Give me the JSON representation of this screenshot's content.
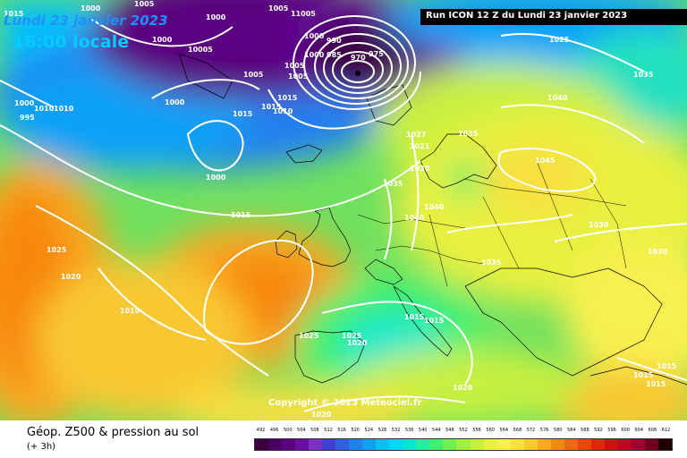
{
  "header": {
    "date": "Lundi 23 janvier 2023",
    "time": "16:00 locale",
    "run": "Run ICON 12 Z du Lundi 23 janvier 2023"
  },
  "copyright": "Copyright © 2023 Meteociel.fr",
  "footer": {
    "title": "Géop. Z500 & pression au sol",
    "subtitle": "(+ 3h)"
  },
  "scale": {
    "labels": [
      "492",
      "496",
      "500",
      "504",
      "508",
      "512",
      "516",
      "520",
      "524",
      "528",
      "532",
      "536",
      "540",
      "544",
      "548",
      "552",
      "556",
      "560",
      "564",
      "568",
      "572",
      "576",
      "580",
      "584",
      "588",
      "592",
      "596",
      "600",
      "604",
      "608",
      "612"
    ],
    "colors": [
      "#3a0040",
      "#4a0060",
      "#5a0080",
      "#6a10a0",
      "#7a30c0",
      "#4040d0",
      "#3060e0",
      "#2080f0",
      "#10a0f8",
      "#00c0ff",
      "#00d8f8",
      "#00e8d0",
      "#20f0a0",
      "#40f070",
      "#70f050",
      "#a0f040",
      "#c8f040",
      "#e8f040",
      "#f8f050",
      "#f8e040",
      "#f8c830",
      "#f8a820",
      "#f88810",
      "#f06808",
      "#e84808",
      "#e02808",
      "#d01010",
      "#c00020",
      "#a00030",
      "#700020",
      "#200000"
    ]
  },
  "isobar_labels": [
    "1015",
    "1000",
    "1000",
    "1005",
    "1005",
    "11005",
    "1000",
    "990",
    "985",
    "970",
    "975",
    "1000",
    "1000",
    "10005",
    "1005",
    "1005",
    "1005",
    "1000",
    "1025",
    "1010",
    "1015",
    "1015",
    "1010",
    "1015",
    "1000",
    "995",
    "1010",
    "1000",
    "1015",
    "1025",
    "1035",
    "1027",
    "1021",
    "1030",
    "1035",
    "1040",
    "1040",
    "1045",
    "1030",
    "1030",
    "1035",
    "1040",
    "1035",
    "1025",
    "1020",
    "1010",
    "1025",
    "1020",
    "1020",
    "1015",
    "1015",
    "1020",
    "1015",
    "1015",
    "1015"
  ]
}
